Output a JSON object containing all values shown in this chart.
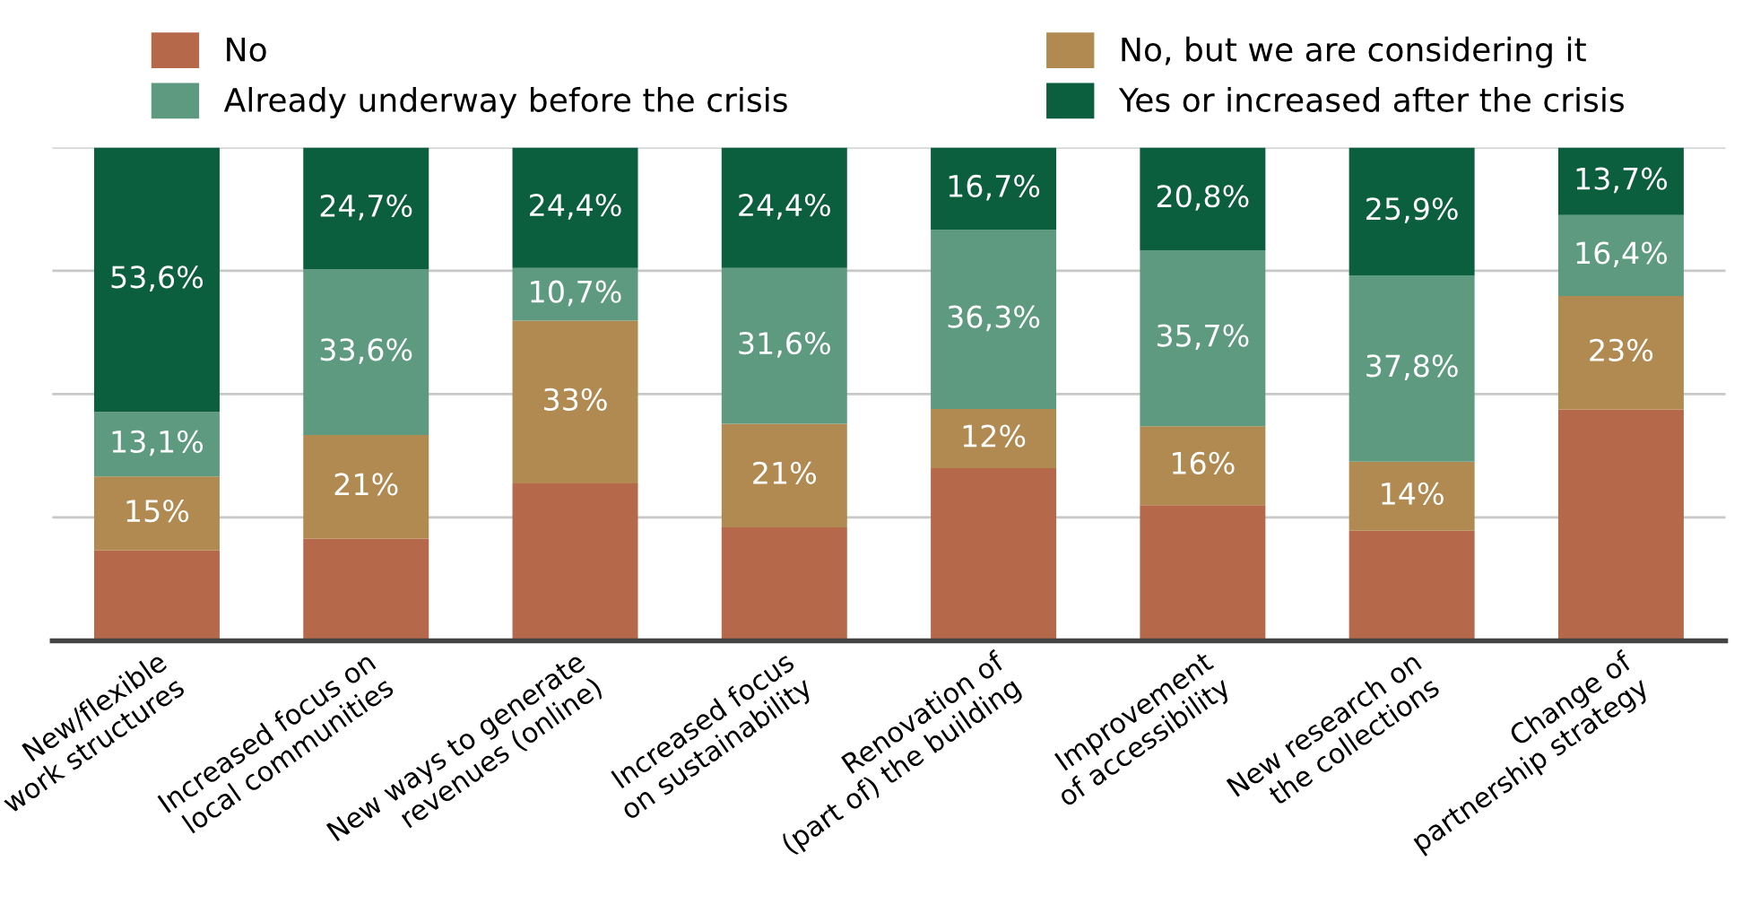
{
  "chart_data": {
    "type": "bar",
    "stacked": true,
    "categories": [
      "New/flexible\nwork structures",
      "Increased focus on\nlocal communities",
      "New ways to generate\nrevenues (online)",
      "Increased focus\non sustainability",
      "Renovation of\n(part of) the building",
      "Improvement\nof accessibility",
      "New research on\nthe collections",
      "Change of\npartnership strategy"
    ],
    "series": [
      {
        "name": "No",
        "color": "#b5694a",
        "values": [
          18.3,
          20.7,
          31.9,
          23,
          35,
          27.5,
          22.3,
          46.9
        ],
        "value_labels": [
          null,
          null,
          null,
          null,
          null,
          null,
          null,
          null
        ]
      },
      {
        "name": "No, but we are considering it",
        "color": "#b08a50",
        "values": [
          15,
          21,
          33,
          21,
          12,
          16,
          14,
          23
        ],
        "value_labels": [
          "15%",
          "21%",
          "33%",
          "21%",
          "12%",
          "16%",
          "14%",
          "23%"
        ]
      },
      {
        "name": "Already underway before the crisis",
        "color": "#5e9a80",
        "values": [
          13.1,
          33.6,
          10.7,
          31.6,
          36.3,
          35.7,
          37.8,
          16.4
        ],
        "value_labels": [
          "13,1%",
          "33,6%",
          "10,7%",
          "31,6%",
          "36,3%",
          "35,7%",
          "37,8%",
          "16,4%"
        ]
      },
      {
        "name": "Yes or increased after the crisis",
        "color": "#0b5e3e",
        "values": [
          53.6,
          24.7,
          24.4,
          24.4,
          16.7,
          20.8,
          25.9,
          13.7
        ],
        "value_labels": [
          "53,6%",
          "24,7%",
          "24,4%",
          "24,4%",
          "16,7%",
          "20,8%",
          "25,9%",
          "13,7%"
        ]
      }
    ],
    "ylim": [
      0,
      100
    ],
    "yticks": [
      {
        "value": 0,
        "label": null
      },
      {
        "value": 25,
        "label": null
      },
      {
        "value": 50,
        "label": null
      },
      {
        "value": 75,
        "label": null
      },
      {
        "value": 100,
        "label": null
      }
    ],
    "tick_labels": "x",
    "grid": "y",
    "legend": "top"
  }
}
